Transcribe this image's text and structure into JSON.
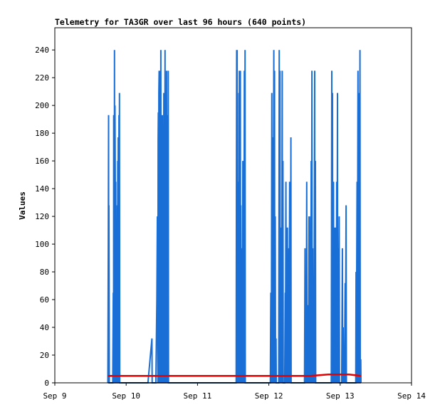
{
  "chart_data": {
    "type": "line",
    "title": "Telemetry for TA3GR over last 96 hours (640 points)",
    "xlabel": "",
    "ylabel": "Values",
    "x_ticks": [
      "Sep 9",
      "Sep 10",
      "Sep 11",
      "Sep 12",
      "Sep 13",
      "Sep 14"
    ],
    "x_range": [
      "Sep 9",
      "Sep 14"
    ],
    "y_ticks": [
      0,
      20,
      40,
      60,
      80,
      100,
      120,
      140,
      160,
      180,
      200,
      220,
      240
    ],
    "ylim": [
      0,
      256
    ],
    "grid": false,
    "legend": "none",
    "series": [
      {
        "color": "#1a6fd6",
        "points": [
          [
            "Sep 9 17:50",
            0
          ],
          [
            "Sep 9 18:00",
            97
          ],
          [
            "Sep 9 18:05",
            193
          ],
          [
            "Sep 9 18:10",
            0
          ],
          [
            "Sep 9 18:12",
            128
          ],
          [
            "Sep 9 18:18",
            48
          ],
          [
            "Sep 9 18:20",
            0
          ],
          [
            "Sep 9 19:30",
            0
          ],
          [
            "Sep 9 19:40",
            65
          ],
          [
            "Sep 9 19:45",
            0
          ],
          [
            "Sep 9 19:48",
            193
          ],
          [
            "Sep 9 19:55",
            32
          ],
          [
            "Sep 9 20:00",
            0
          ],
          [
            "Sep 9 20:05",
            240
          ],
          [
            "Sep 9 20:10",
            0
          ],
          [
            "Sep 9 20:14",
            200
          ],
          [
            "Sep 9 20:20",
            145
          ],
          [
            "Sep 9 20:25",
            0
          ],
          [
            "Sep 9 20:30",
            145
          ],
          [
            "Sep 9 20:35",
            0
          ],
          [
            "Sep 9 20:40",
            73
          ],
          [
            "Sep 9 20:45",
            0
          ],
          [
            "Sep 9 20:50",
            73
          ],
          [
            "Sep 9 20:55",
            0
          ],
          [
            "Sep 9 21:00",
            128
          ],
          [
            "Sep 9 21:05",
            0
          ],
          [
            "Sep 9 21:10",
            160
          ],
          [
            "Sep 9 21:15",
            0
          ],
          [
            "Sep 9 21:20",
            177
          ],
          [
            "Sep 9 21:25",
            65
          ],
          [
            "Sep 9 21:30",
            0
          ],
          [
            "Sep 9 21:35",
            193
          ],
          [
            "Sep 9 21:40",
            0
          ],
          [
            "Sep 9 21:45",
            209
          ],
          [
            "Sep 9 21:50",
            0
          ],
          [
            "Sep 10 07:20",
            0
          ],
          [
            "Sep 10 08:40",
            32
          ],
          [
            "Sep 10 08:45",
            0
          ],
          [
            "Sep 10 10:00",
            0
          ],
          [
            "Sep 10 10:20",
            60
          ],
          [
            "Sep 10 10:30",
            120
          ],
          [
            "Sep 10 10:40",
            0
          ],
          [
            "Sep 10 10:45",
            175
          ],
          [
            "Sep 10 10:50",
            195
          ],
          [
            "Sep 10 10:55",
            0
          ],
          [
            "Sep 10 11:00",
            209
          ],
          [
            "Sep 10 11:05",
            225
          ],
          [
            "Sep 10 11:10",
            0
          ],
          [
            "Sep 10 11:15",
            225
          ],
          [
            "Sep 10 11:20",
            0
          ],
          [
            "Sep 10 11:30",
            160
          ],
          [
            "Sep 10 11:35",
            0
          ],
          [
            "Sep 10 11:40",
            240
          ],
          [
            "Sep 10 11:45",
            0
          ],
          [
            "Sep 10 11:50",
            193
          ],
          [
            "Sep 10 11:55",
            0
          ],
          [
            "Sep 10 12:00",
            177
          ],
          [
            "Sep 10 12:05",
            0
          ],
          [
            "Sep 10 12:10",
            193
          ],
          [
            "Sep 10 12:15",
            0
          ],
          [
            "Sep 10 12:25",
            97
          ],
          [
            "Sep 10 12:30",
            0
          ],
          [
            "Sep 10 12:40",
            209
          ],
          [
            "Sep 10 12:45",
            0
          ],
          [
            "Sep 10 12:50",
            160
          ],
          [
            "Sep 10 12:55",
            0
          ],
          [
            "Sep 10 13:05",
            240
          ],
          [
            "Sep 10 13:10",
            0
          ],
          [
            "Sep 10 13:20",
            145
          ],
          [
            "Sep 10 13:25",
            0
          ],
          [
            "Sep 10 13:35",
            225
          ],
          [
            "Sep 10 13:40",
            0
          ],
          [
            "Sep 10 13:50",
            97
          ],
          [
            "Sep 10 13:55",
            193
          ],
          [
            "Sep 10 14:00",
            0
          ],
          [
            "Sep 10 14:10",
            225
          ],
          [
            "Sep 10 14:15",
            0
          ],
          [
            "Sep 11 13:00",
            0
          ],
          [
            "Sep 11 13:05",
            120
          ],
          [
            "Sep 11 13:10",
            240
          ],
          [
            "Sep 11 13:15",
            0
          ],
          [
            "Sep 11 13:20",
            240
          ],
          [
            "Sep 11 13:25",
            0
          ],
          [
            "Sep 11 13:30",
            145
          ],
          [
            "Sep 11 13:35",
            0
          ],
          [
            "Sep 11 13:45",
            112
          ],
          [
            "Sep 11 13:50",
            0
          ],
          [
            "Sep 11 13:55",
            209
          ],
          [
            "Sep 11 14:00",
            0
          ],
          [
            "Sep 11 14:05",
            225
          ],
          [
            "Sep 11 14:10",
            0
          ],
          [
            "Sep 11 14:15",
            225
          ],
          [
            "Sep 11 14:20",
            0
          ],
          [
            "Sep 11 14:25",
            225
          ],
          [
            "Sep 11 14:30",
            0
          ],
          [
            "Sep 11 14:35",
            128
          ],
          [
            "Sep 11 14:40",
            0
          ],
          [
            "Sep 11 14:45",
            65
          ],
          [
            "Sep 11 14:50",
            0
          ],
          [
            "Sep 11 15:00",
            97
          ],
          [
            "Sep 11 15:05",
            0
          ],
          [
            "Sep 11 15:15",
            160
          ],
          [
            "Sep 11 15:20",
            0
          ],
          [
            "Sep 11 15:30",
            112
          ],
          [
            "Sep 11 15:35",
            0
          ],
          [
            "Sep 11 15:45",
            225
          ],
          [
            "Sep 11 15:50",
            0
          ],
          [
            "Sep 11 16:00",
            240
          ],
          [
            "Sep 11 16:05",
            0
          ],
          [
            "Sep 12 00:30",
            0
          ],
          [
            "Sep 12 00:40",
            65
          ],
          [
            "Sep 12 00:45",
            48
          ],
          [
            "Sep 12 00:50",
            0
          ],
          [
            "Sep 12 01:00",
            209
          ],
          [
            "Sep 12 01:05",
            0
          ],
          [
            "Sep 12 01:20",
            177
          ],
          [
            "Sep 12 01:25",
            0
          ],
          [
            "Sep 12 01:40",
            240
          ],
          [
            "Sep 12 01:45",
            0
          ],
          [
            "Sep 12 01:55",
            225
          ],
          [
            "Sep 12 02:00",
            0
          ],
          [
            "Sep 12 02:10",
            120
          ],
          [
            "Sep 12 02:15",
            0
          ],
          [
            "Sep 12 02:25",
            32
          ],
          [
            "Sep 12 02:30",
            0
          ],
          [
            "Sep 12 03:20",
            0
          ],
          [
            "Sep 12 03:30",
            240
          ],
          [
            "Sep 12 03:35",
            0
          ],
          [
            "Sep 12 03:45",
            225
          ],
          [
            "Sep 12 03:50",
            0
          ],
          [
            "Sep 12 04:00",
            48
          ],
          [
            "Sep 12 04:05",
            0
          ],
          [
            "Sep 12 04:15",
            112
          ],
          [
            "Sep 12 04:20",
            0
          ],
          [
            "Sep 12 04:30",
            225
          ],
          [
            "Sep 12 04:35",
            0
          ],
          [
            "Sep 12 04:45",
            160
          ],
          [
            "Sep 12 04:50",
            0
          ],
          [
            "Sep 12 05:20",
            0
          ],
          [
            "Sep 12 05:30",
            65
          ],
          [
            "Sep 12 05:35",
            0
          ],
          [
            "Sep 12 05:45",
            145
          ],
          [
            "Sep 12 05:50",
            0
          ],
          [
            "Sep 12 06:00",
            112
          ],
          [
            "Sep 12 06:05",
            0
          ],
          [
            "Sep 12 06:15",
            112
          ],
          [
            "Sep 12 06:20",
            0
          ],
          [
            "Sep 12 06:30",
            60
          ],
          [
            "Sep 12 06:35",
            0
          ],
          [
            "Sep 12 06:45",
            97
          ],
          [
            "Sep 12 06:50",
            0
          ],
          [
            "Sep 12 07:00",
            145
          ],
          [
            "Sep 12 07:05",
            0
          ],
          [
            "Sep 12 07:10",
            24
          ],
          [
            "Sep 12 07:15",
            0
          ],
          [
            "Sep 12 07:25",
            177
          ],
          [
            "Sep 12 07:30",
            0
          ],
          [
            "Sep 12 12:00",
            0
          ],
          [
            "Sep 12 12:10",
            97
          ],
          [
            "Sep 12 12:15",
            0
          ],
          [
            "Sep 12 12:30",
            65
          ],
          [
            "Sep 12 12:35",
            0
          ],
          [
            "Sep 12 12:45",
            145
          ],
          [
            "Sep 12 12:50",
            0
          ],
          [
            "Sep 12 13:00",
            56
          ],
          [
            "Sep 12 13:05",
            0
          ],
          [
            "Sep 12 13:15",
            24
          ],
          [
            "Sep 12 13:20",
            0
          ],
          [
            "Sep 12 13:30",
            120
          ],
          [
            "Sep 12 13:35",
            0
          ],
          [
            "Sep 12 13:45",
            97
          ],
          [
            "Sep 12 13:50",
            0
          ],
          [
            "Sep 12 14:00",
            120
          ],
          [
            "Sep 12 14:05",
            0
          ],
          [
            "Sep 12 14:15",
            160
          ],
          [
            "Sep 12 14:20",
            0
          ],
          [
            "Sep 12 14:30",
            225
          ],
          [
            "Sep 12 14:35",
            0
          ],
          [
            "Sep 12 14:45",
            97
          ],
          [
            "Sep 12 14:50",
            0
          ],
          [
            "Sep 12 15:05",
            56
          ],
          [
            "Sep 12 15:10",
            0
          ],
          [
            "Sep 12 15:25",
            225
          ],
          [
            "Sep 12 15:30",
            0
          ],
          [
            "Sep 12 15:40",
            160
          ],
          [
            "Sep 12 15:45",
            0
          ],
          [
            "Sep 12 21:00",
            0
          ],
          [
            "Sep 12 21:10",
            225
          ],
          [
            "Sep 12 21:15",
            0
          ],
          [
            "Sep 12 21:25",
            209
          ],
          [
            "Sep 12 21:30",
            0
          ],
          [
            "Sep 12 21:45",
            145
          ],
          [
            "Sep 12 21:50",
            0
          ],
          [
            "Sep 12 22:05",
            112
          ],
          [
            "Sep 12 22:10",
            0
          ],
          [
            "Sep 12 22:20",
            112
          ],
          [
            "Sep 12 22:25",
            0
          ],
          [
            "Sep 12 22:35",
            97
          ],
          [
            "Sep 12 22:40",
            0
          ],
          [
            "Sep 12 22:50",
            145
          ],
          [
            "Sep 12 22:55",
            0
          ],
          [
            "Sep 12 23:05",
            209
          ],
          [
            "Sep 12 23:10",
            0
          ],
          [
            "Sep 12 23:20",
            97
          ],
          [
            "Sep 12 23:25",
            0
          ],
          [
            "Sep 12 23:40",
            120
          ],
          [
            "Sep 12 23:45",
            0
          ],
          [
            "Sep 13 00:30",
            0
          ],
          [
            "Sep 13 00:40",
            65
          ],
          [
            "Sep 13 00:45",
            97
          ],
          [
            "Sep 13 00:50",
            0
          ],
          [
            "Sep 13 01:00",
            40
          ],
          [
            "Sep 13 01:05",
            0
          ],
          [
            "Sep 13 01:20",
            24
          ],
          [
            "Sep 13 01:25",
            0
          ],
          [
            "Sep 13 01:40",
            72
          ],
          [
            "Sep 13 01:45",
            0
          ],
          [
            "Sep 13 02:00",
            128
          ],
          [
            "Sep 13 02:05",
            0
          ],
          [
            "Sep 13 05:15",
            0
          ],
          [
            "Sep 13 05:20",
            80
          ],
          [
            "Sep 13 05:25",
            0
          ],
          [
            "Sep 13 05:40",
            145
          ],
          [
            "Sep 13 05:45",
            0
          ],
          [
            "Sep 13 06:00",
            225
          ],
          [
            "Sep 13 06:05",
            0
          ],
          [
            "Sep 13 06:20",
            209
          ],
          [
            "Sep 13 06:25",
            0
          ],
          [
            "Sep 13 06:40",
            240
          ],
          [
            "Sep 13 06:45",
            0
          ],
          [
            "Sep 13 06:55",
            17
          ],
          [
            "Sep 13 07:00",
            0
          ]
        ]
      },
      {
        "color": "#e60000",
        "points": [
          [
            "Sep 9 17:50",
            5
          ],
          [
            "Sep 10 05:00",
            5
          ],
          [
            "Sep 10 12:00",
            5
          ],
          [
            "Sep 10 20:00",
            5
          ],
          [
            "Sep 11 06:00",
            5
          ],
          [
            "Sep 11 16:00",
            5
          ],
          [
            "Sep 12 02:00",
            5
          ],
          [
            "Sep 12 14:00",
            5
          ],
          [
            "Sep 12 20:00",
            6
          ],
          [
            "Sep 13 03:00",
            6
          ],
          [
            "Sep 13 07:00",
            5
          ]
        ]
      },
      {
        "color": "#000000",
        "points": [
          [
            "Sep 9 17:50",
            0
          ],
          [
            "Sep 13 07:00",
            0
          ]
        ]
      }
    ]
  }
}
